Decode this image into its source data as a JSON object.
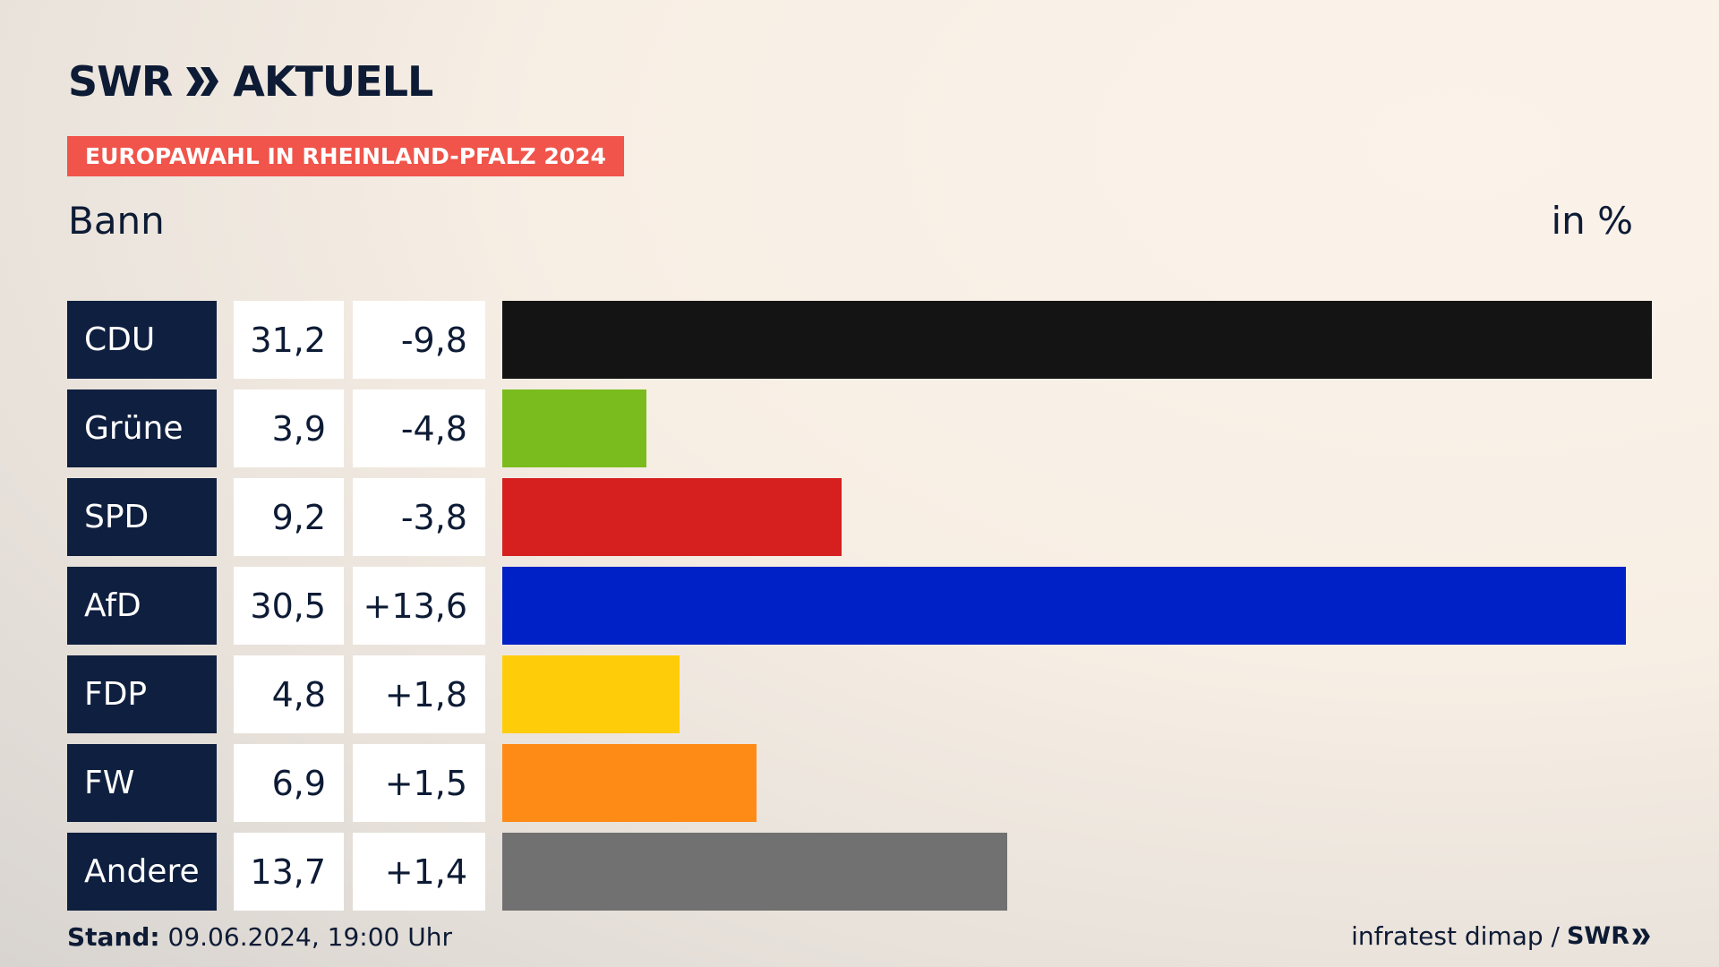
{
  "header": {
    "brand": "SWR",
    "brand_suffix": "AKTUELL",
    "tag": "EUROPAWAHL IN RHEINLAND-PFALZ 2024",
    "region": "Bann",
    "unit": "in %"
  },
  "footer": {
    "stand_label": "Stand:",
    "stand_value": "09.06.2024, 19:00 Uhr",
    "source": "infratest dimap /",
    "source_brand": "SWR"
  },
  "chart_data": {
    "type": "bar",
    "orientation": "horizontal",
    "categories": [
      "CDU",
      "Grüne",
      "SPD",
      "AfD",
      "FDP",
      "FW",
      "Andere"
    ],
    "values": [
      31.2,
      3.9,
      9.2,
      30.5,
      4.8,
      6.9,
      13.7
    ],
    "value_labels": [
      "31,2",
      "3,9",
      "9,2",
      "30,5",
      "4,8",
      "6,9",
      "13,7"
    ],
    "changes": [
      -9.8,
      -4.8,
      -3.8,
      13.6,
      1.8,
      1.5,
      1.4
    ],
    "change_labels": [
      "-9,8",
      "-4,8",
      "-3,8",
      "+13,6",
      "+1,8",
      "+1,5",
      "+1,4"
    ],
    "colors": [
      "#141414",
      "#7abc1d",
      "#d61f1f",
      "#0021c6",
      "#ffcc0a",
      "#ff8b17",
      "#717171"
    ],
    "title": "",
    "xlabel": "",
    "ylabel": "",
    "grid": false,
    "legend": "none"
  }
}
